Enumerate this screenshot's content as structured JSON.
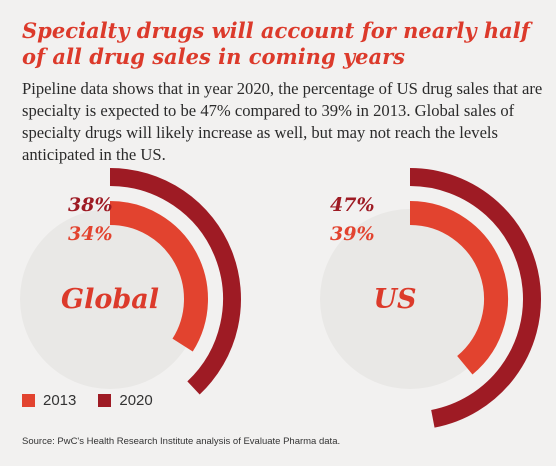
{
  "header": {
    "title": "Specialty drugs will account for nearly half of all drug sales in coming years",
    "body": "Pipeline data shows that in year 2020, the percentage of US drug sales that are specialty is expected to be 47% compared to 39% in 2013. Global sales of specialty drugs will likely increase as well, but may not reach the levels anticipated in the US."
  },
  "chart_data": [
    {
      "type": "radial-bar",
      "label": "Global",
      "series": [
        {
          "name": "2013",
          "value": 34,
          "label": "34%"
        },
        {
          "name": "2020",
          "value": 38,
          "label": "38%"
        }
      ]
    },
    {
      "type": "radial-bar",
      "label": "US",
      "series": [
        {
          "name": "2013",
          "value": 39,
          "label": "39%"
        },
        {
          "name": "2020",
          "value": 47,
          "label": "47%"
        }
      ]
    }
  ],
  "legend": [
    {
      "label": "2013",
      "color": "#e2432f"
    },
    {
      "label": "2020",
      "color": "#9e1b24"
    }
  ],
  "colors": {
    "title": "#dc3a2b",
    "y2013": "#e2432f",
    "y2020": "#9e1b24",
    "disc": "#e9e8e6"
  },
  "source": "Source: PwC's Health Research Institute analysis of Evaluate Pharma data."
}
